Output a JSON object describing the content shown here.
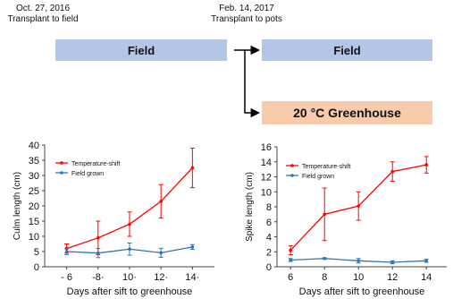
{
  "timeline": {
    "date1": "Oct. 27, 2016",
    "step1": "Transplant to field",
    "date2": "Feb. 14, 2017",
    "step2": "Transplant to pots",
    "field1_label": "Field",
    "field2_label": "Field",
    "greenhouse_label": "20 °C Greenhouse"
  },
  "colors": {
    "temperature_shift": "#ff0000",
    "field_grown": "#2e75b6",
    "field_box": "#b4c6e7",
    "greenhouse_box": "#f8cbad"
  },
  "chart_data": [
    {
      "type": "line",
      "x": [
        6,
        8,
        10,
        12,
        14
      ],
      "x_tick_labels": [
        "- 6",
        "-8·",
        "10·",
        "12·",
        "14·"
      ],
      "xlabel": "Days after sift to greenhouse",
      "ylabel": "Culm length (cm)",
      "ylim": [
        0,
        40
      ],
      "y_ticks": [
        0,
        5,
        10,
        15,
        20,
        25,
        30,
        35,
        40
      ],
      "grid": false,
      "legend_position": "top-left",
      "series": [
        {
          "name": "Temperature-shift",
          "color": "#ff0000",
          "values": [
            6,
            9.5,
            14,
            21.5,
            32.5
          ],
          "errors": [
            1.5,
            5.5,
            4,
            5.5,
            6.5
          ]
        },
        {
          "name": "Field grown",
          "color": "#2e75b6",
          "values": [
            5,
            4.5,
            5.8,
            4.6,
            6.5
          ],
          "errors": [
            1,
            1.5,
            2,
            1.5,
            0.8
          ]
        }
      ]
    },
    {
      "type": "line",
      "x": [
        6,
        8,
        10,
        12,
        14
      ],
      "x_tick_labels": [
        "6",
        "8",
        "10",
        "12",
        "14"
      ],
      "xlabel": "Days after sift to greenhouse",
      "ylabel": "Spike length (cm)",
      "ylim": [
        0,
        16
      ],
      "y_ticks": [
        0,
        2,
        4,
        6,
        8,
        10,
        12,
        14,
        16
      ],
      "grid": false,
      "legend_position": "top-left",
      "series": [
        {
          "name": "Temperature-shift",
          "color": "#ff0000",
          "values": [
            2.2,
            7,
            8.1,
            12.7,
            13.6
          ],
          "errors": [
            0.6,
            3.5,
            1.9,
            1.3,
            1.1
          ]
        },
        {
          "name": "Field grown",
          "color": "#2e75b6",
          "values": [
            0.9,
            1.1,
            0.8,
            0.6,
            0.8
          ],
          "errors": [
            0.2,
            0.1,
            0.3,
            0.2,
            0.2
          ]
        }
      ]
    }
  ]
}
